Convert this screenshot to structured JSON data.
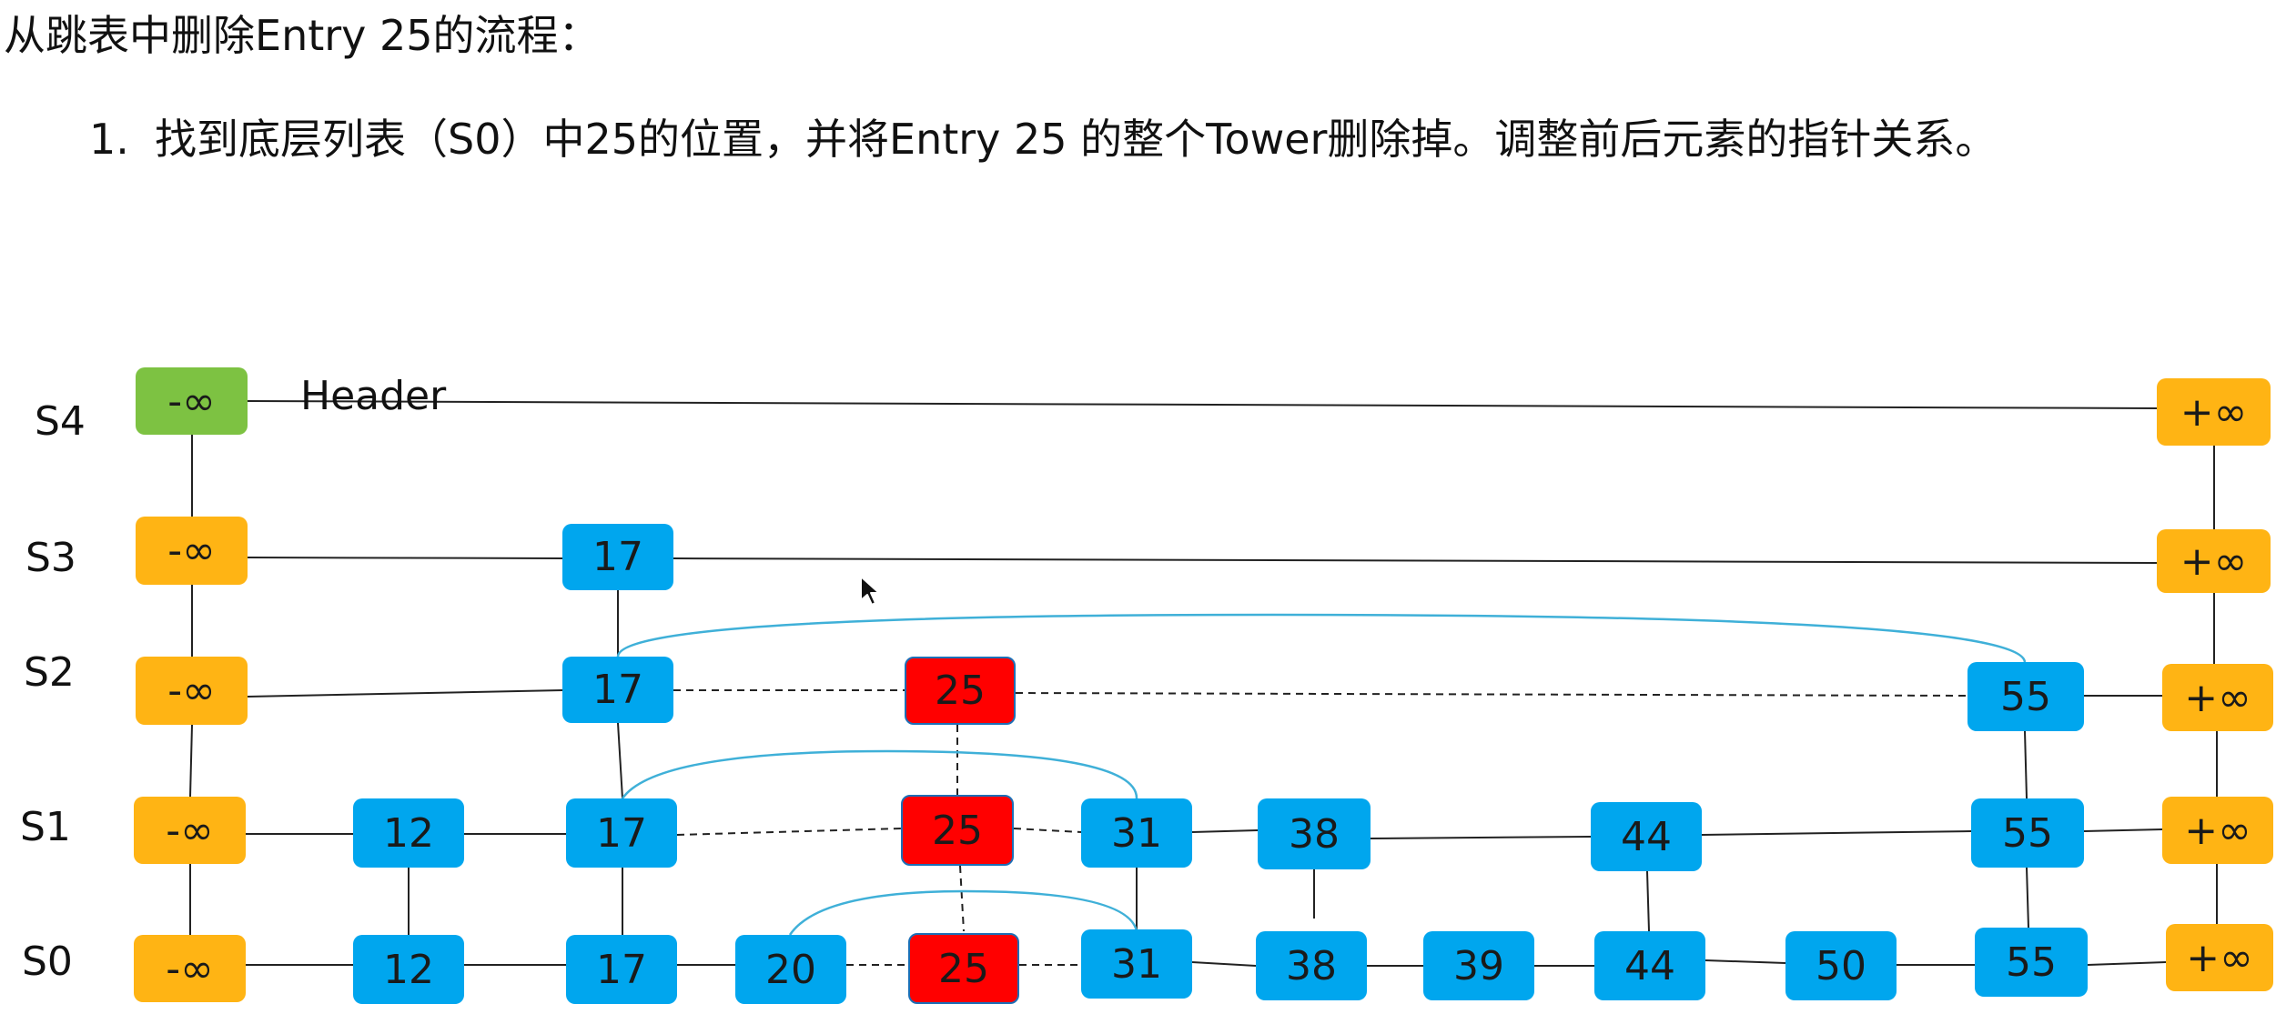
{
  "title": "从跳表中删除Entry 25的流程：",
  "step": {
    "number": "1.",
    "text": "找到底层列表（S0）中25的位置，并将Entry 25 的整个Tower删除掉。调整前后元素的指针关系。"
  },
  "header_label": "Header",
  "levels": [
    "S4",
    "S3",
    "S2",
    "S1",
    "S0"
  ],
  "neg_inf": "-∞",
  "pos_inf": "+∞",
  "colors": {
    "node": "#00a6ee",
    "sentinel": "#ffb414",
    "header": "#7dc242",
    "deleted": "#ff0000",
    "new_link": "#3fb0d8"
  },
  "nodes": {
    "s3": [
      "17"
    ],
    "s2": [
      "17",
      "25",
      "55"
    ],
    "s1": [
      "12",
      "17",
      "25",
      "31",
      "38",
      "44",
      "55"
    ],
    "s0": [
      "12",
      "17",
      "20",
      "25",
      "31",
      "38",
      "39",
      "44",
      "50",
      "55"
    ]
  }
}
